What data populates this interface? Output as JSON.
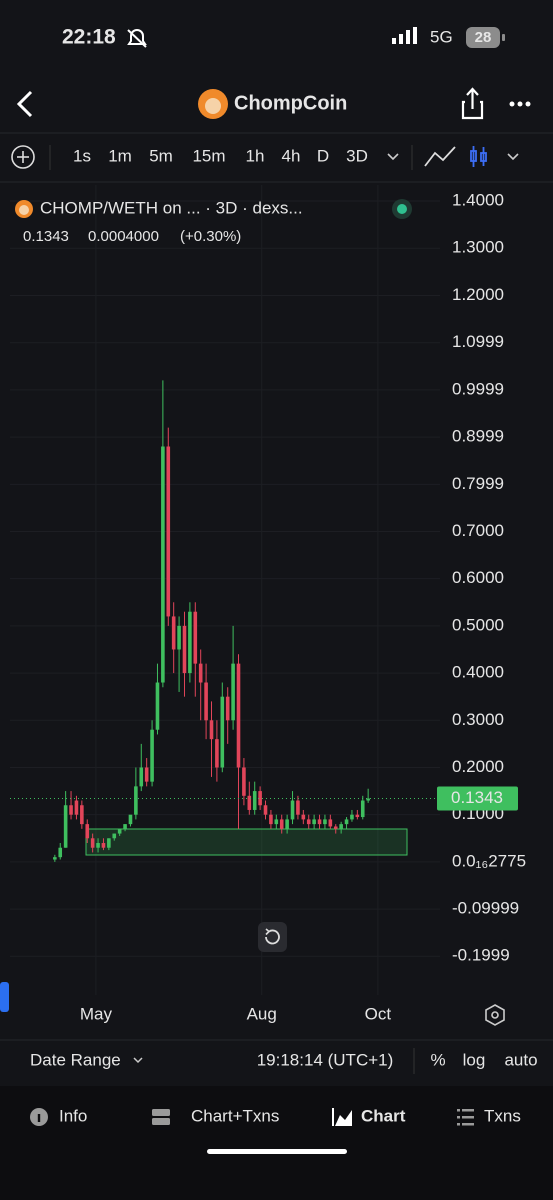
{
  "status_bar": {
    "time": "22:18",
    "network": "5G",
    "battery": "28"
  },
  "header": {
    "title": "ChompCoin"
  },
  "toolbar": {
    "intervals": [
      "1s",
      "1m",
      "5m",
      "15m",
      "1h",
      "4h",
      "D",
      "3D"
    ],
    "active_index": 7
  },
  "chart_data": {
    "type": "candlestick",
    "title": "CHOMP/WETH on ... · 3D · dexs...",
    "last_price": 0.1343,
    "change": "0.0004000",
    "change_pct": "(+0.30%)",
    "up_color": "#3fbf5f",
    "down_color": "#e2455a",
    "grid": true,
    "xlim": [
      -8.3,
      71.3
    ],
    "xticks": [
      {
        "value": 7.6,
        "label": "May"
      },
      {
        "value": 38.3,
        "label": "Aug"
      },
      {
        "value": 59.8,
        "label": "Oct"
      }
    ],
    "ylim": [
      -0.282,
      1.434
    ],
    "yticks": [
      {
        "value": 1.4,
        "label": "1.4000"
      },
      {
        "value": 1.3,
        "label": "1.3000"
      },
      {
        "value": 1.2,
        "label": "1.2000"
      },
      1.0999,
      0.9999,
      0.8999,
      0.7999,
      {
        "value": 0.7,
        "label": "0.7000"
      },
      {
        "value": 0.6,
        "label": "0.6000"
      },
      {
        "value": 0.5,
        "label": "0.5000"
      },
      {
        "value": 0.4,
        "label": "0.4000"
      },
      {
        "value": 0.3,
        "label": "0.3000"
      },
      {
        "value": 0.2,
        "label": "0.2000"
      },
      {
        "value": 0.1,
        "label": "0.1000"
      },
      {
        "value": 2.775e-17,
        "label": "0.0₁₆2775"
      },
      -0.09999,
      -0.1999
    ],
    "open": [
      0.005,
      0.01,
      0.03,
      0.12,
      0.13,
      0.12,
      0.08,
      0.05,
      0.03,
      0.04,
      0.03,
      0.05,
      0.06,
      0.07,
      0.08,
      0.1,
      0.16,
      0.2,
      0.17,
      0.28,
      0.38,
      0.88,
      0.52,
      0.45,
      0.5,
      0.4,
      0.53,
      0.42,
      0.38,
      0.3,
      0.26,
      0.2,
      0.35,
      0.3,
      0.42,
      0.2,
      0.14,
      0.11,
      0.15,
      0.12,
      0.1,
      0.08,
      0.09,
      0.07,
      0.09,
      0.13,
      0.1,
      0.09,
      0.08,
      0.09,
      0.08,
      0.09,
      0.075,
      0.07,
      0.08,
      0.09,
      0.1,
      0.095,
      0.13
    ],
    "high": [
      0.015,
      0.04,
      0.15,
      0.15,
      0.14,
      0.13,
      0.09,
      0.06,
      0.05,
      0.05,
      0.05,
      0.06,
      0.07,
      0.08,
      0.09,
      0.2,
      0.25,
      0.22,
      0.3,
      0.42,
      1.02,
      0.92,
      0.55,
      0.52,
      0.53,
      0.55,
      0.55,
      0.45,
      0.42,
      0.34,
      0.3,
      0.38,
      0.37,
      0.5,
      0.44,
      0.22,
      0.17,
      0.17,
      0.16,
      0.13,
      0.11,
      0.1,
      0.1,
      0.1,
      0.15,
      0.14,
      0.11,
      0.1,
      0.1,
      0.1,
      0.1,
      0.1,
      0.08,
      0.085,
      0.095,
      0.11,
      0.11,
      0.14,
      0.155
    ],
    "low": [
      0.0,
      0.005,
      0.03,
      0.09,
      0.09,
      0.07,
      0.04,
      0.02,
      0.02,
      0.025,
      0.025,
      0.045,
      0.055,
      0.065,
      0.075,
      0.09,
      0.15,
      0.16,
      0.16,
      0.27,
      0.37,
      0.5,
      0.4,
      0.36,
      0.35,
      0.38,
      0.35,
      0.3,
      0.26,
      0.18,
      0.17,
      0.19,
      0.25,
      0.28,
      0.07,
      0.12,
      0.1,
      0.1,
      0.11,
      0.09,
      0.07,
      0.07,
      0.06,
      0.06,
      0.08,
      0.09,
      0.08,
      0.07,
      0.07,
      0.07,
      0.07,
      0.07,
      0.06,
      0.06,
      0.07,
      0.085,
      0.09,
      0.09,
      0.125
    ],
    "close": [
      0.01,
      0.03,
      0.12,
      0.1,
      0.1,
      0.08,
      0.05,
      0.03,
      0.04,
      0.03,
      0.05,
      0.06,
      0.07,
      0.08,
      0.1,
      0.16,
      0.2,
      0.17,
      0.28,
      0.38,
      0.88,
      0.52,
      0.45,
      0.5,
      0.4,
      0.53,
      0.42,
      0.38,
      0.3,
      0.26,
      0.2,
      0.35,
      0.3,
      0.42,
      0.2,
      0.14,
      0.11,
      0.15,
      0.12,
      0.1,
      0.08,
      0.09,
      0.07,
      0.09,
      0.13,
      0.1,
      0.09,
      0.08,
      0.09,
      0.08,
      0.09,
      0.075,
      0.07,
      0.08,
      0.09,
      0.1,
      0.095,
      0.13,
      0.1343
    ]
  },
  "footer": {
    "date_range": "Date Range",
    "time": "19:18:14 (UTC+1)",
    "percent": "%",
    "log": "log",
    "auto": "auto"
  },
  "nav": {
    "items": [
      "Info",
      "Chart+Txns",
      "Chart",
      "Txns"
    ],
    "active_index": 2
  }
}
